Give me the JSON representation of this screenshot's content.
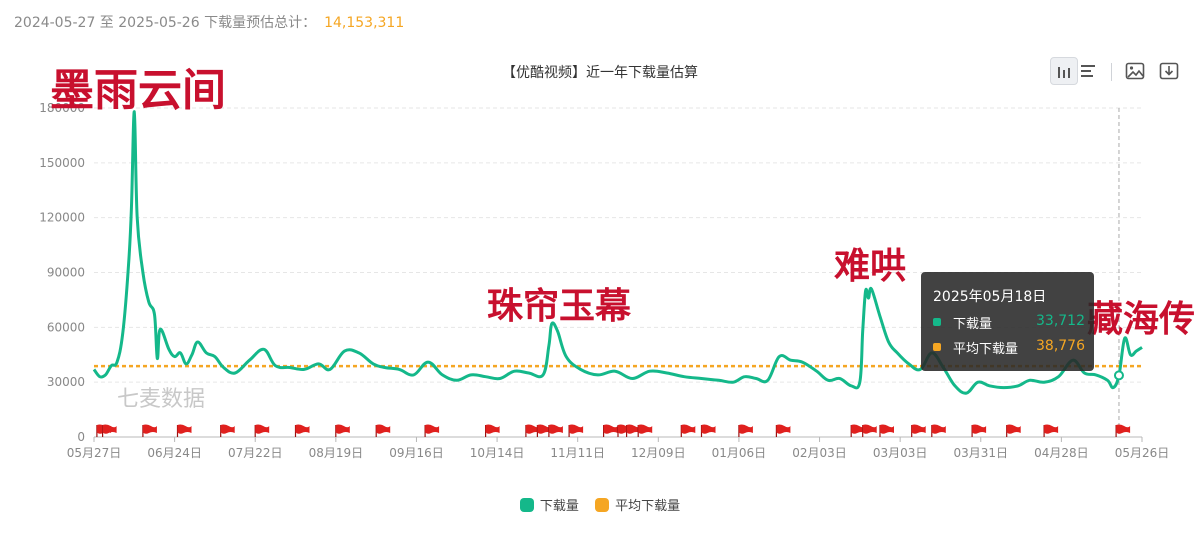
{
  "summary": {
    "prefix": "2024-05-27 至 2025-05-26 下载量预估总计：",
    "total": "14,153,311"
  },
  "toolbar": {
    "icons": [
      "bar-chart-icon",
      "horizontal-bar-icon",
      "save-image-icon",
      "download-icon"
    ]
  },
  "colors": {
    "download": "#14b88a",
    "average": "#f5a623",
    "annotation": "#c8102e",
    "flag": "#e0201e"
  },
  "overlays": {
    "moyuyunjian": "墨雨云间",
    "zhulianyumu": "珠帘玉幕",
    "nanhong": "难哄",
    "canghaizhuan": "藏海传"
  },
  "watermark": "七麦数据",
  "tooltip": {
    "date": "2025年05月18日",
    "rows": [
      {
        "label": "下载量",
        "value": "33,712"
      },
      {
        "label": "平均下载量",
        "value": "38,776"
      }
    ]
  },
  "chart_data": {
    "type": "line",
    "title": "【优酷视频】近一年下载量估算",
    "x_start": "2024-05-27",
    "x_end": "2025-05-26",
    "xticks": [
      "05月27日",
      "06月24日",
      "07月22日",
      "08月19日",
      "09月16日",
      "10月14日",
      "11月11日",
      "12月09日",
      "01月06日",
      "02月03日",
      "03月03日",
      "03月31日",
      "04月28日",
      "05月26日"
    ],
    "yticks": [
      0,
      30000,
      60000,
      90000,
      120000,
      150000,
      180000
    ],
    "ylim": [
      0,
      180000
    ],
    "grid": true,
    "legend_position": "bottom",
    "series": [
      {
        "name": "下载量",
        "points": [
          [
            "2024-05-27",
            37000
          ],
          [
            "2024-05-29",
            33000
          ],
          [
            "2024-05-31",
            34000
          ],
          [
            "2024-06-02",
            39000
          ],
          [
            "2024-06-04",
            41000
          ],
          [
            "2024-06-06",
            57000
          ],
          [
            "2024-06-08",
            94000
          ],
          [
            "2024-06-09",
            125000
          ],
          [
            "2024-06-10",
            178000
          ],
          [
            "2024-06-11",
            120000
          ],
          [
            "2024-06-13",
            90000
          ],
          [
            "2024-06-15",
            74000
          ],
          [
            "2024-06-17",
            67000
          ],
          [
            "2024-06-18",
            43000
          ],
          [
            "2024-06-19",
            59000
          ],
          [
            "2024-06-22",
            48000
          ],
          [
            "2024-06-24",
            44000
          ],
          [
            "2024-06-26",
            46000
          ],
          [
            "2024-06-28",
            40000
          ],
          [
            "2024-06-30",
            45000
          ],
          [
            "2024-07-02",
            52000
          ],
          [
            "2024-07-05",
            46000
          ],
          [
            "2024-07-08",
            44000
          ],
          [
            "2024-07-11",
            38000
          ],
          [
            "2024-07-15",
            35000
          ],
          [
            "2024-07-20",
            42000
          ],
          [
            "2024-07-25",
            48000
          ],
          [
            "2024-07-29",
            39000
          ],
          [
            "2024-08-03",
            38000
          ],
          [
            "2024-08-08",
            37000
          ],
          [
            "2024-08-13",
            40000
          ],
          [
            "2024-08-17",
            37000
          ],
          [
            "2024-08-22",
            47000
          ],
          [
            "2024-08-27",
            46000
          ],
          [
            "2024-09-01",
            40000
          ],
          [
            "2024-09-05",
            38000
          ],
          [
            "2024-09-10",
            37000
          ],
          [
            "2024-09-15",
            34000
          ],
          [
            "2024-09-20",
            41000
          ],
          [
            "2024-09-25",
            34000
          ],
          [
            "2024-09-30",
            31000
          ],
          [
            "2024-10-05",
            34000
          ],
          [
            "2024-10-10",
            33000
          ],
          [
            "2024-10-15",
            32000
          ],
          [
            "2024-10-20",
            36000
          ],
          [
            "2024-10-25",
            35000
          ],
          [
            "2024-10-30",
            34000
          ],
          [
            "2024-11-01",
            50000
          ],
          [
            "2024-11-02",
            62000
          ],
          [
            "2024-11-04",
            58000
          ],
          [
            "2024-11-07",
            44000
          ],
          [
            "2024-11-12",
            37000
          ],
          [
            "2024-11-18",
            34000
          ],
          [
            "2024-11-24",
            36000
          ],
          [
            "2024-11-30",
            32000
          ],
          [
            "2024-12-06",
            36000
          ],
          [
            "2024-12-12",
            35000
          ],
          [
            "2024-12-18",
            33000
          ],
          [
            "2024-12-24",
            32000
          ],
          [
            "2024-12-30",
            31000
          ],
          [
            "2025-01-04",
            30000
          ],
          [
            "2025-01-08",
            33000
          ],
          [
            "2025-01-12",
            32000
          ],
          [
            "2025-01-16",
            31000
          ],
          [
            "2025-01-20",
            44000
          ],
          [
            "2025-01-24",
            42000
          ],
          [
            "2025-01-28",
            41000
          ],
          [
            "2025-02-02",
            36000
          ],
          [
            "2025-02-06",
            31000
          ],
          [
            "2025-02-10",
            32000
          ],
          [
            "2025-02-14",
            28000
          ],
          [
            "2025-02-17",
            30000
          ],
          [
            "2025-02-18",
            58000
          ],
          [
            "2025-02-19",
            80000
          ],
          [
            "2025-02-20",
            76000
          ],
          [
            "2025-02-21",
            81000
          ],
          [
            "2025-02-24",
            66000
          ],
          [
            "2025-02-27",
            52000
          ],
          [
            "2025-03-02",
            46000
          ],
          [
            "2025-03-06",
            40000
          ],
          [
            "2025-03-10",
            37000
          ],
          [
            "2025-03-14",
            46000
          ],
          [
            "2025-03-18",
            38000
          ],
          [
            "2025-03-22",
            28000
          ],
          [
            "2025-03-26",
            24000
          ],
          [
            "2025-03-30",
            30000
          ],
          [
            "2025-04-03",
            28000
          ],
          [
            "2025-04-08",
            27000
          ],
          [
            "2025-04-13",
            28000
          ],
          [
            "2025-04-17",
            31000
          ],
          [
            "2025-04-22",
            30000
          ],
          [
            "2025-04-27",
            33000
          ],
          [
            "2025-05-02",
            42000
          ],
          [
            "2025-05-06",
            35000
          ],
          [
            "2025-05-10",
            34000
          ],
          [
            "2025-05-14",
            31000
          ],
          [
            "2025-05-16",
            27000
          ],
          [
            "2025-05-18",
            33712
          ],
          [
            "2025-05-20",
            54000
          ],
          [
            "2025-05-22",
            45000
          ],
          [
            "2025-05-24",
            47000
          ],
          [
            "2025-05-26",
            49000
          ]
        ]
      },
      {
        "name": "平均下载量",
        "value": 38776
      }
    ],
    "hover_date": "2025-05-18",
    "flag_dates": [
      "2024-05-28",
      "2024-05-30",
      "2024-06-13",
      "2024-06-25",
      "2024-07-10",
      "2024-07-22",
      "2024-08-05",
      "2024-08-19",
      "2024-09-02",
      "2024-09-19",
      "2024-10-10",
      "2024-10-24",
      "2024-10-28",
      "2024-11-01",
      "2024-11-08",
      "2024-11-20",
      "2024-11-25",
      "2024-11-28",
      "2024-12-02",
      "2024-12-17",
      "2024-12-24",
      "2025-01-06",
      "2025-01-19",
      "2025-02-14",
      "2025-02-18",
      "2025-02-24",
      "2025-03-07",
      "2025-03-14",
      "2025-03-28",
      "2025-04-09",
      "2025-04-22",
      "2025-05-17"
    ]
  },
  "legend": [
    {
      "label": "下载量",
      "color": "#14b88a"
    },
    {
      "label": "平均下载量",
      "color": "#f5a623"
    }
  ]
}
